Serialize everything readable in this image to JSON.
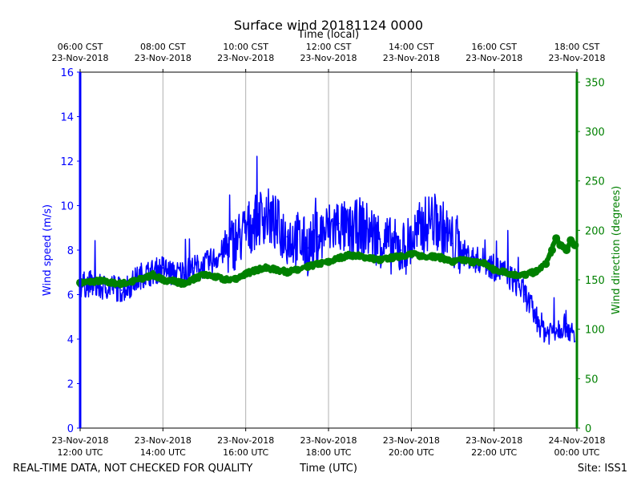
{
  "chart_data": {
    "type": "line",
    "title": "Surface wind 20181124 0000",
    "top_axis_label": "Time (local)",
    "xlabel": "Time (UTC)",
    "ylabel_left": "Wind speed (m/s)",
    "ylabel_right": "Wind direction (degrees)",
    "footer_left": "REAL-TIME DATA, NOT CHECKED FOR QUALITY",
    "footer_right": "Site: ISS1",
    "grid": "vertical",
    "xlim_hours_utc": [
      12,
      24
    ],
    "ylim_left": [
      0,
      16
    ],
    "ylim_right": [
      0,
      360
    ],
    "left_ticks": [
      "0",
      "2",
      "4",
      "6",
      "8",
      "10",
      "12",
      "14",
      "16"
    ],
    "right_ticks": [
      "0",
      "50",
      "100",
      "150",
      "200",
      "250",
      "300",
      "350"
    ],
    "bottom_ticks": [
      {
        "time": "12:00 UTC",
        "date": "23-Nov-2018"
      },
      {
        "time": "14:00 UTC",
        "date": "23-Nov-2018"
      },
      {
        "time": "16:00 UTC",
        "date": "23-Nov-2018"
      },
      {
        "time": "18:00 UTC",
        "date": "23-Nov-2018"
      },
      {
        "time": "20:00 UTC",
        "date": "23-Nov-2018"
      },
      {
        "time": "22:00 UTC",
        "date": "23-Nov-2018"
      },
      {
        "time": "00:00 UTC",
        "date": "24-Nov-2018"
      }
    ],
    "top_ticks": [
      {
        "time": "06:00 CST",
        "date": "23-Nov-2018"
      },
      {
        "time": "08:00 CST",
        "date": "23-Nov-2018"
      },
      {
        "time": "10:00 CST",
        "date": "23-Nov-2018"
      },
      {
        "time": "12:00 CST",
        "date": "23-Nov-2018"
      },
      {
        "time": "14:00 CST",
        "date": "23-Nov-2018"
      },
      {
        "time": "16:00 CST",
        "date": "23-Nov-2018"
      },
      {
        "time": "18:00 CST",
        "date": "23-Nov-2018"
      }
    ],
    "colors": {
      "speed": "#0000ff",
      "direction": "#008000"
    },
    "series": [
      {
        "name": "Wind speed (m/s)",
        "axis": "left",
        "x_hours_utc": [
          12.0,
          12.25,
          12.5,
          12.75,
          13.0,
          13.25,
          13.5,
          13.75,
          14.0,
          14.25,
          14.5,
          14.75,
          15.0,
          15.25,
          15.5,
          15.75,
          16.0,
          16.25,
          16.5,
          16.75,
          17.0,
          17.25,
          17.5,
          17.75,
          18.0,
          18.25,
          18.5,
          18.75,
          19.0,
          19.25,
          19.5,
          19.75,
          20.0,
          20.25,
          20.5,
          20.75,
          21.0,
          21.25,
          21.5,
          21.75,
          22.0,
          22.25,
          22.5,
          22.75,
          23.0,
          23.25,
          23.5,
          23.75,
          23.95
        ],
        "values": [
          6.4,
          6.5,
          6.3,
          6.4,
          6.2,
          6.5,
          6.9,
          7.0,
          7.2,
          6.9,
          7.0,
          7.2,
          7.3,
          7.6,
          8.0,
          8.4,
          8.8,
          9.4,
          9.6,
          9.1,
          8.6,
          8.5,
          8.1,
          8.6,
          8.9,
          9.2,
          8.7,
          9.1,
          8.8,
          8.5,
          8.2,
          8.0,
          8.4,
          9.0,
          9.4,
          9.0,
          8.3,
          7.9,
          7.6,
          7.5,
          7.2,
          7.0,
          6.6,
          6.0,
          5.0,
          4.3,
          4.5,
          4.7,
          3.9
        ]
      },
      {
        "name": "Wind direction (degrees)",
        "axis": "right",
        "x_hours_utc": [
          12.0,
          12.25,
          12.5,
          12.75,
          13.0,
          13.25,
          13.5,
          13.75,
          14.0,
          14.25,
          14.5,
          14.75,
          15.0,
          15.25,
          15.5,
          15.75,
          16.0,
          16.25,
          16.5,
          16.75,
          17.0,
          17.25,
          17.5,
          17.75,
          18.0,
          18.25,
          18.5,
          18.75,
          19.0,
          19.25,
          19.5,
          19.75,
          20.0,
          20.25,
          20.5,
          20.75,
          21.0,
          21.25,
          21.5,
          21.75,
          22.0,
          22.25,
          22.5,
          22.75,
          23.0,
          23.25,
          23.4,
          23.5,
          23.6,
          23.75,
          23.85,
          23.95
        ],
        "values": [
          147,
          148,
          149,
          147,
          146,
          148,
          151,
          155,
          150,
          149,
          146,
          151,
          155,
          153,
          150,
          151,
          156,
          160,
          162,
          160,
          158,
          160,
          163,
          166,
          168,
          172,
          175,
          174,
          172,
          170,
          172,
          174,
          176,
          174,
          174,
          172,
          168,
          170,
          168,
          167,
          160,
          158,
          155,
          155,
          158,
          166,
          180,
          192,
          185,
          180,
          190,
          185
        ]
      }
    ]
  }
}
